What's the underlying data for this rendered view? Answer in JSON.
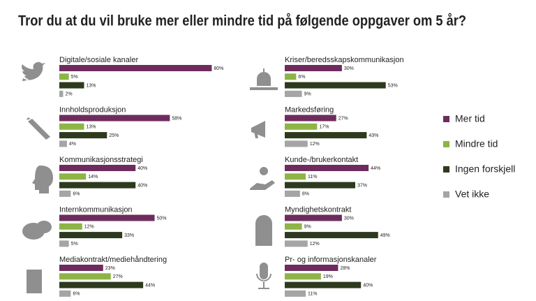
{
  "chart_data": {
    "type": "bar",
    "title": "Tror du at du vil bruke mer eller mindre tid på følgende oppgaver om 5 år?",
    "categories": [
      "Digitale/sosiale kanaler",
      "Innholdsproduksjon",
      "Kommunikasjonsstrategi",
      "Internkommunikasjon",
      "Mediakontrakt/mediehåndtering",
      "Kriser/beredsskapskommunikasjon",
      "Markedsføring",
      "Kunde-/brukerkontakt",
      "Myndighetskontrakt",
      "Pr- og informasjonskanaler"
    ],
    "series": [
      {
        "name": "Mer tid",
        "color": "#6e2c5e",
        "values": [
          80,
          58,
          40,
          50,
          23,
          30,
          27,
          44,
          30,
          28
        ],
        "value_labels": [
          "80%",
          "58%",
          "40%",
          "50%",
          "23%",
          "30%",
          "27%",
          "44%",
          "30%",
          "28%"
        ]
      },
      {
        "name": "Mindre tid",
        "color": "#8db545",
        "values": [
          5,
          13,
          14,
          12,
          27,
          6,
          17,
          11,
          9,
          19
        ],
        "value_labels": [
          "5%",
          "13%",
          "14%",
          "12%",
          "27%",
          "6%",
          "17%",
          "11%",
          "9%",
          "19%"
        ]
      },
      {
        "name": "Ingen forskjell",
        "color": "#2d3a1e",
        "values": [
          13,
          25,
          40,
          33,
          44,
          53,
          43,
          37,
          49,
          40
        ],
        "value_labels": [
          "13%",
          "25%",
          "40%",
          "33%",
          "44%",
          "53%",
          "43%",
          "37%",
          "49%",
          "40%"
        ]
      },
      {
        "name": "Vet ikke",
        "color": "#a5a5a5",
        "values": [
          2,
          4,
          6,
          5,
          6,
          9,
          12,
          8,
          12,
          11
        ],
        "value_labels": [
          "2%",
          "4%",
          "6%",
          "5%",
          "6%",
          "9%",
          "12%",
          "8%",
          "12%",
          "11%"
        ]
      }
    ],
    "legend": "right"
  }
}
